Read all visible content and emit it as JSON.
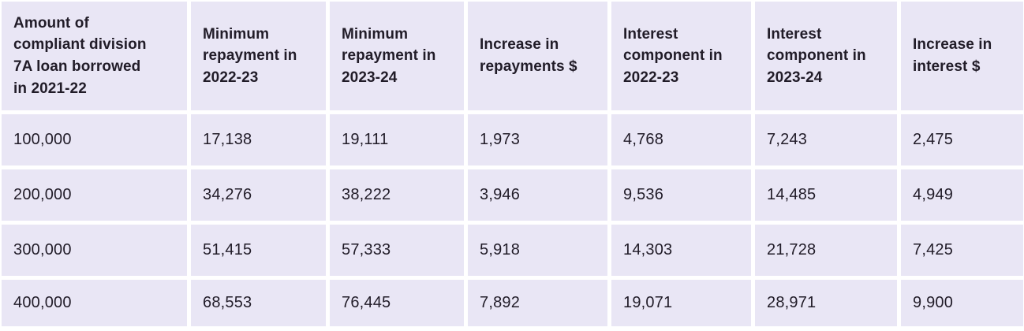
{
  "chart_data": {
    "type": "table",
    "columns": [
      "Amount of compliant division 7A loan borrowed in 2021-22",
      "Minimum repayment in 2022-23",
      "Minimum repayment in 2023-24",
      "Increase in repayments $",
      "Interest component in 2022-23",
      "Interest component in 2023-24",
      "Increase in interest $"
    ],
    "rows": [
      [
        "100,000",
        "17,138",
        "19,111",
        "1,973",
        "4,768",
        "7,243",
        "2,475"
      ],
      [
        "200,000",
        "34,276",
        "38,222",
        "3,946",
        "9,536",
        "14,485",
        "4,949"
      ],
      [
        "300,000",
        "51,415",
        "57,333",
        "5,918",
        "14,303",
        "21,728",
        "7,425"
      ],
      [
        "400,000",
        "68,553",
        "76,445",
        "7,892",
        "19,071",
        "28,971",
        "9,900"
      ]
    ]
  },
  "colors": {
    "cell_background": "#e9e6f5",
    "gap_background": "#ffffff",
    "text": "#211c28"
  }
}
